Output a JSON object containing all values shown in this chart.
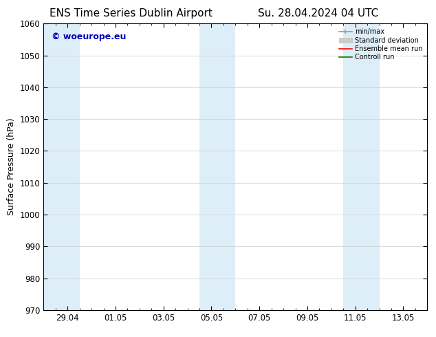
{
  "title_left": "ENS Time Series Dublin Airport",
  "title_right": "Su. 28.04.2024 04 UTC",
  "ylabel": "Surface Pressure (hPa)",
  "ylim": [
    970,
    1060
  ],
  "yticks": [
    970,
    980,
    990,
    1000,
    1010,
    1020,
    1030,
    1040,
    1050,
    1060
  ],
  "xlim": [
    0,
    16
  ],
  "xtick_labels": [
    "29.04",
    "01.05",
    "03.05",
    "05.05",
    "07.05",
    "09.05",
    "11.05",
    "13.05"
  ],
  "xtick_positions": [
    1,
    3,
    5,
    7,
    9,
    11,
    13,
    15
  ],
  "shaded_bands": [
    {
      "x_start": 0.0,
      "x_end": 1.5,
      "color": "#deeef8"
    },
    {
      "x_start": 6.5,
      "x_end": 8.0,
      "color": "#deeef8"
    },
    {
      "x_start": 12.5,
      "x_end": 14.0,
      "color": "#deeef8"
    }
  ],
  "watermark_text": "© woeurope.eu",
  "watermark_color": "#0000bb",
  "legend_items": [
    {
      "label": "min/max",
      "color": "#999999"
    },
    {
      "label": "Standard deviation",
      "color": "#cccccc"
    },
    {
      "label": "Ensemble mean run",
      "color": "#ff0000"
    },
    {
      "label": "Controll run",
      "color": "#008000"
    }
  ],
  "background_color": "#ffffff",
  "grid_color": "#cccccc",
  "title_fontsize": 11,
  "axis_label_fontsize": 9,
  "tick_fontsize": 8.5
}
